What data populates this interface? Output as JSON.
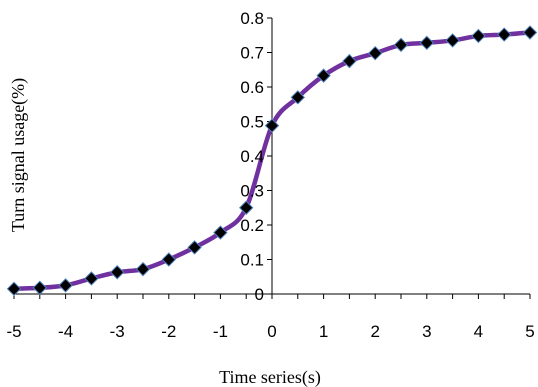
{
  "chart_data": {
    "type": "line",
    "title": "",
    "xlabel": "Time series(s)",
    "ylabel": "Turn signal usage(%)",
    "xlim": [
      -5,
      5
    ],
    "ylim": [
      0,
      0.8
    ],
    "x_ticks": [
      "-5",
      "-4.5",
      "-4",
      "-3.5",
      "-3",
      "-2.5",
      "-2",
      "-1.5",
      "-1",
      "-0.5",
      "0",
      "0.5",
      "1",
      "1.5",
      "2",
      "2.5",
      "3",
      "3.5",
      "4",
      "4.5",
      "5"
    ],
    "x_tick_labels": [
      "-5",
      "-4",
      "-3",
      "-2",
      "-1",
      "0",
      "1",
      "2",
      "3",
      "4",
      "5"
    ],
    "y_tick_labels": [
      "0",
      "0.1",
      "0.2",
      "0.3",
      "0.4",
      "0.5",
      "0.6",
      "0.7",
      "0.8"
    ],
    "grid": false,
    "legend": "none",
    "series": [
      {
        "color": "#7030a0",
        "marker_color": "#000000",
        "marker_edge": "#4f81bd",
        "marker": "diamond",
        "x": [
          -5,
          -4.5,
          -4,
          -3.5,
          -3,
          -2.5,
          -2,
          -1.5,
          -1,
          -0.5,
          0,
          0.5,
          1,
          1.5,
          2,
          2.5,
          3,
          3.5,
          4,
          4.5,
          5
        ],
        "values": [
          0.015,
          0.018,
          0.025,
          0.045,
          0.063,
          0.072,
          0.1,
          0.135,
          0.178,
          0.25,
          0.488,
          0.57,
          0.633,
          0.675,
          0.698,
          0.722,
          0.728,
          0.735,
          0.748,
          0.752,
          0.758
        ]
      }
    ]
  }
}
